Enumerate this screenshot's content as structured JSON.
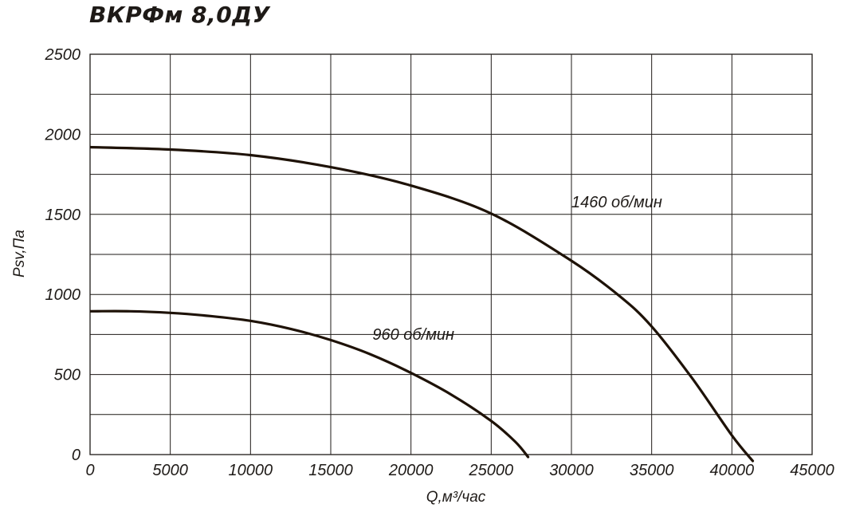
{
  "chart_data": {
    "type": "line",
    "title": "ВКРФм 8,0ДУ",
    "xlabel": "Q,м³/час",
    "ylabel": "Psv,Па",
    "xlim": [
      0,
      45000
    ],
    "ylim": [
      0,
      2500
    ],
    "x_ticks": [
      0,
      5000,
      10000,
      15000,
      20000,
      25000,
      30000,
      35000,
      40000,
      45000
    ],
    "y_ticks": [
      0,
      500,
      1000,
      1500,
      2000,
      2500
    ],
    "grid": true,
    "series": [
      {
        "name": "1460 об/мин",
        "x": [
          0,
          5000,
          10000,
          15000,
          20000,
          25000,
          30000,
          33000,
          35000,
          37500,
          40000,
          41300
        ],
        "y": [
          1920,
          1905,
          1870,
          1795,
          1680,
          1505,
          1210,
          990,
          800,
          480,
          120,
          -40
        ]
      },
      {
        "name": "960 об/мин",
        "x": [
          0,
          2500,
          5000,
          7500,
          10000,
          12500,
          15000,
          17500,
          20000,
          22500,
          25000,
          26500,
          27300
        ],
        "y": [
          895,
          895,
          885,
          865,
          835,
          785,
          715,
          625,
          510,
          375,
          210,
          80,
          -15
        ]
      }
    ]
  }
}
